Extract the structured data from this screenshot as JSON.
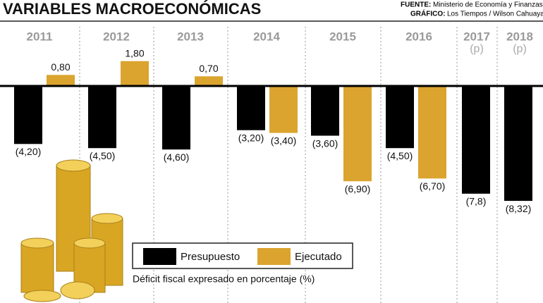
{
  "chart_data": {
    "type": "bar",
    "title": "VARIABLES MACROECONÓMICAS",
    "source_label": "FUENTE:",
    "source": "Ministerio de Economía y Finanzas",
    "credit_label": "GRÁFICO:",
    "credit": "Los Tiempos / Wilson Cahuaya",
    "categories": [
      "2011",
      "2012",
      "2013",
      "2014",
      "2015",
      "2016",
      "2017",
      "2018"
    ],
    "category_notes": [
      null,
      null,
      null,
      null,
      null,
      null,
      "(p)",
      "(p)"
    ],
    "series": [
      {
        "name": "Presupuesto",
        "color": "#000000",
        "values": [
          -4.2,
          -4.5,
          -4.6,
          -3.2,
          -3.6,
          -4.5,
          -7.8,
          -8.32
        ],
        "value_labels": [
          "(4,20)",
          "(4,50)",
          "(4,60)",
          "(3,20)",
          "(3,60)",
          "(4,50)",
          "(7,8)",
          "(8,32)"
        ]
      },
      {
        "name": "Ejecutado",
        "color": "#dba42f",
        "values": [
          0.8,
          1.8,
          0.7,
          -3.4,
          -6.9,
          -6.7,
          null,
          null
        ],
        "value_labels": [
          "0,80",
          "1,80",
          "0,70",
          "(3,40)",
          "(6,90)",
          "(6,70)",
          null,
          null
        ]
      }
    ],
    "ylim": [
      -9,
      3
    ],
    "footnote": "Déficit fiscal expresado en porcentaje (%)"
  }
}
